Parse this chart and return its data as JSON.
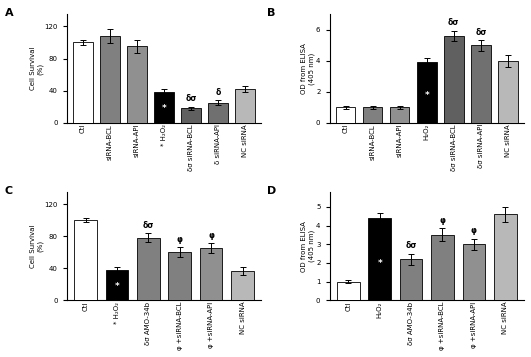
{
  "panel_A": {
    "title": "A",
    "ylabel": "Cell Survival\n(%)",
    "ylim": [
      0,
      135
    ],
    "yticks": [
      0,
      40,
      80,
      120
    ],
    "categories": [
      "Ctl",
      "siRNA-BCL",
      "siRNA-API",
      "* H₂O₂",
      "δσ siRNA-BCL",
      "δ siRNA-API",
      "NC siRNA"
    ],
    "values": [
      100,
      108,
      95,
      38,
      18,
      25,
      42
    ],
    "errors": [
      3,
      9,
      8,
      4,
      2,
      3,
      4
    ],
    "colors": [
      "white",
      "#808080",
      "#909090",
      "black",
      "#606060",
      "#707070",
      "#b8b8b8"
    ],
    "bar_labels": [
      "Ctl",
      "siRNA-BCL",
      "siRNA-API",
      "* H₂O₂",
      "δσ siRNA-BCL",
      "δ siRNA-API",
      "NC siRNA"
    ],
    "top_annots": [
      "",
      "",
      "",
      "",
      "δσ",
      "δ",
      ""
    ],
    "inside_annots": [
      "",
      "",
      "",
      "*",
      "",
      "",
      ""
    ],
    "inside_colors": [
      "black",
      "white",
      "white",
      "white",
      "white",
      "white",
      "black"
    ]
  },
  "panel_B": {
    "title": "B",
    "ylabel": "OD from ELISA\n(405 nm)",
    "ylim": [
      0,
      7
    ],
    "yticks": [
      0,
      2,
      4,
      6
    ],
    "categories": [
      "Ctl",
      "siRNA-BCL",
      "siRNA-API",
      "H₂O₂",
      "δσ siRNA-BCL",
      "δσ siRNA-API",
      "NC siRNA"
    ],
    "values": [
      1.0,
      1.0,
      1.0,
      3.9,
      5.6,
      5.0,
      4.0
    ],
    "errors": [
      0.1,
      0.1,
      0.1,
      0.3,
      0.35,
      0.35,
      0.4
    ],
    "colors": [
      "white",
      "#808080",
      "#909090",
      "black",
      "#606060",
      "#707070",
      "#b8b8b8"
    ],
    "bar_labels": [
      "Ctl",
      "siRNA-BCL",
      "siRNA-API",
      "H₂O₂",
      "δσ siRNA-BCL",
      "δσ siRNA-API",
      "NC siRNA"
    ],
    "top_annots": [
      "",
      "",
      "",
      "",
      "δσ",
      "δσ",
      ""
    ],
    "inside_annots": [
      "",
      "",
      "",
      "*",
      "",
      "",
      ""
    ],
    "inside_colors": [
      "black",
      "black",
      "black",
      "white",
      "white",
      "white",
      "black"
    ]
  },
  "panel_C": {
    "title": "C",
    "ylabel": "Cell Survival\n(%)",
    "ylim": [
      0,
      135
    ],
    "yticks": [
      0,
      40,
      80,
      120
    ],
    "categories": [
      "Ctl",
      "* H₂O₂",
      "δσ AMO-34b",
      "φ +siRNA-BCL",
      "φ +siRNA-API",
      "NC siRNA"
    ],
    "values": [
      100,
      38,
      78,
      60,
      65,
      37
    ],
    "errors": [
      3,
      4,
      6,
      6,
      6,
      5
    ],
    "colors": [
      "white",
      "black",
      "#808080",
      "#808080",
      "#909090",
      "#b8b8b8"
    ],
    "bar_labels": [
      "Ctl",
      "* H₂O₂",
      "δσ AMO-34b",
      "φ +siRNA-BCL",
      "φ +siRNA-API",
      "NC siRNA"
    ],
    "top_annots": [
      "",
      "",
      "δσ",
      "φ",
      "φ",
      ""
    ],
    "inside_annots": [
      "",
      "*",
      "",
      "",
      "",
      ""
    ],
    "inside_colors": [
      "black",
      "white",
      "white",
      "white",
      "white",
      "black"
    ]
  },
  "panel_D": {
    "title": "D",
    "ylabel": "OD from ELISA\n(405 nm)",
    "ylim": [
      0,
      5.8
    ],
    "yticks": [
      0,
      1,
      2,
      3,
      4,
      5
    ],
    "categories": [
      "Ctl",
      "H₂O₂",
      "δσ AMO-34b",
      "φ +siRNA-BCL",
      "φ +siRNA-API",
      "NC siRNA"
    ],
    "values": [
      1.0,
      4.4,
      2.2,
      3.5,
      3.0,
      4.6
    ],
    "errors": [
      0.1,
      0.3,
      0.3,
      0.35,
      0.3,
      0.4
    ],
    "colors": [
      "white",
      "black",
      "#808080",
      "#808080",
      "#909090",
      "#b8b8b8"
    ],
    "bar_labels": [
      "Ctl",
      "H₂O₂",
      "δσ AMO-34b",
      "φ +siRNA-BCL",
      "φ +siRNA-API",
      "NC siRNA"
    ],
    "top_annots": [
      "",
      "",
      "δσ",
      "φ",
      "φ",
      ""
    ],
    "inside_annots": [
      "",
      "*",
      "",
      "",
      "",
      ""
    ],
    "inside_colors": [
      "black",
      "white",
      "black",
      "black",
      "black",
      "black"
    ]
  }
}
